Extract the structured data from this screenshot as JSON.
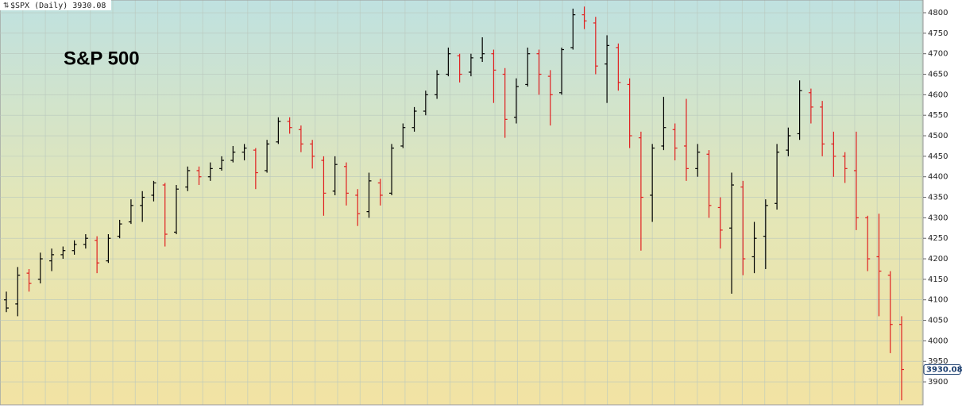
{
  "chart_data": {
    "type": "ohlc",
    "title": "$SPX (Daily) 3930.08",
    "annotation": "S&P 500",
    "last_label": "3930.08",
    "up_color": "#000000",
    "down_color": "#e02020",
    "ylim": [
      3844,
      4831
    ],
    "yticks": [
      3900,
      3950,
      4000,
      4050,
      4100,
      4150,
      4200,
      4250,
      4300,
      4350,
      4400,
      4450,
      4500,
      4550,
      4600,
      4650,
      4700,
      4750,
      4800
    ],
    "grid": true,
    "open": [
      4100,
      4090,
      4165,
      4150,
      4195,
      4210,
      4220,
      4235,
      4245,
      4195,
      4255,
      4290,
      4330,
      4355,
      4380,
      4265,
      4375,
      4415,
      4400,
      4420,
      4440,
      4460,
      4465,
      4415,
      4485,
      4535,
      4515,
      4480,
      4440,
      4365,
      4425,
      4355,
      4315,
      4385,
      4360,
      4475,
      4520,
      4560,
      4600,
      4650,
      4695,
      4655,
      4690,
      4700,
      4650,
      4545,
      4625,
      4700,
      4645,
      4605,
      4715,
      4795,
      4775,
      4675,
      4715,
      4625,
      4495,
      4355,
      4475,
      4515,
      4475,
      4420,
      4455,
      4325,
      4275,
      4375,
      4205,
      4255,
      4335,
      4465,
      4505,
      4605,
      4570,
      4480,
      4450,
      4415,
      4300,
      4205,
      4160,
      4040
    ],
    "high": [
      4120,
      4180,
      4175,
      4215,
      4225,
      4230,
      4245,
      4260,
      4255,
      4260,
      4295,
      4345,
      4365,
      4390,
      4385,
      4380,
      4425,
      4425,
      4435,
      4450,
      4475,
      4480,
      4470,
      4490,
      4545,
      4545,
      4525,
      4490,
      4450,
      4450,
      4435,
      4370,
      4410,
      4395,
      4480,
      4530,
      4570,
      4610,
      4660,
      4715,
      4700,
      4700,
      4740,
      4710,
      4665,
      4640,
      4715,
      4710,
      4660,
      4715,
      4810,
      4815,
      4790,
      4745,
      4725,
      4640,
      4510,
      4480,
      4595,
      4530,
      4590,
      4480,
      4465,
      4350,
      4410,
      4390,
      4290,
      4345,
      4480,
      4520,
      4635,
      4615,
      4585,
      4510,
      4460,
      4510,
      4305,
      4310,
      4170,
      4060
    ],
    "low": [
      4070,
      4060,
      4120,
      4140,
      4170,
      4200,
      4210,
      4225,
      4165,
      4190,
      4250,
      4285,
      4290,
      4340,
      4230,
      4260,
      4365,
      4380,
      4390,
      4415,
      4435,
      4440,
      4370,
      4410,
      4480,
      4505,
      4460,
      4420,
      4305,
      4355,
      4330,
      4280,
      4300,
      4330,
      4355,
      4470,
      4510,
      4550,
      4590,
      4645,
      4630,
      4645,
      4680,
      4580,
      4495,
      4530,
      4620,
      4600,
      4525,
      4600,
      4710,
      4760,
      4650,
      4580,
      4610,
      4470,
      4220,
      4290,
      4465,
      4440,
      4390,
      4400,
      4300,
      4225,
      4115,
      4160,
      4165,
      4175,
      4320,
      4450,
      4490,
      4530,
      4450,
      4400,
      4385,
      4270,
      4170,
      4060,
      3970,
      3855
    ],
    "close": [
      4080,
      4160,
      4140,
      4200,
      4210,
      4220,
      4235,
      4250,
      4190,
      4250,
      4285,
      4330,
      4350,
      4385,
      4260,
      4370,
      4415,
      4400,
      4420,
      4440,
      4460,
      4470,
      4410,
      4480,
      4535,
      4520,
      4480,
      4450,
      4360,
      4430,
      4360,
      4310,
      4390,
      4355,
      4470,
      4520,
      4560,
      4600,
      4650,
      4700,
      4650,
      4690,
      4700,
      4660,
      4540,
      4620,
      4700,
      4650,
      4600,
      4710,
      4795,
      4780,
      4670,
      4720,
      4630,
      4500,
      4350,
      4470,
      4520,
      4470,
      4420,
      4460,
      4330,
      4270,
      4380,
      4200,
      4250,
      4330,
      4460,
      4500,
      4610,
      4570,
      4480,
      4450,
      4420,
      4300,
      4200,
      4170,
      4040,
      3930.08
    ]
  }
}
